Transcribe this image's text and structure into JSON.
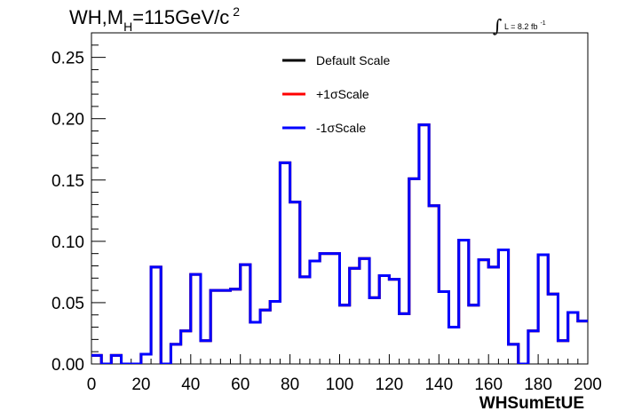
{
  "chart_data": {
    "type": "line",
    "title": {
      "prefix": "WH,M",
      "subscript": "H",
      "main": "=115GeV/c",
      "superscript": "2"
    },
    "luminosity": {
      "integral_symbol": "∫",
      "label": "L = 8.2 fb",
      "superscript": "-1"
    },
    "xlabel": "WHSumEtUE",
    "ylabel": "",
    "xlim": [
      0,
      200
    ],
    "ylim": [
      0,
      0.27
    ],
    "x_ticks": [
      "0",
      "20",
      "40",
      "60",
      "80",
      "100",
      "120",
      "140",
      "160",
      "180",
      "200"
    ],
    "y_ticks": [
      "0.00",
      "0.05",
      "0.10",
      "0.15",
      "0.20",
      "0.25"
    ],
    "bin_edges": [
      0,
      4,
      8,
      12,
      16,
      20,
      24,
      28,
      32,
      36,
      40,
      44,
      48,
      52,
      56,
      60,
      64,
      68,
      72,
      76,
      80,
      84,
      88,
      92,
      96,
      100,
      104,
      108,
      112,
      116,
      120,
      124,
      128,
      132,
      136,
      140,
      144,
      148,
      152,
      156,
      160,
      164,
      168,
      172,
      176,
      180,
      184,
      188,
      192,
      196,
      200
    ],
    "legend_position": "top-center",
    "series": [
      {
        "name": "Default Scale",
        "color": "#000000",
        "values": [
          0.007,
          0.0,
          0.007,
          0.0,
          0.0,
          0.008,
          0.079,
          0.0,
          0.016,
          0.027,
          0.073,
          0.019,
          0.06,
          0.06,
          0.061,
          0.081,
          0.034,
          0.044,
          0.051,
          0.164,
          0.132,
          0.071,
          0.084,
          0.09,
          0.09,
          0.048,
          0.078,
          0.086,
          0.054,
          0.072,
          0.069,
          0.041,
          0.151,
          0.195,
          0.129,
          0.059,
          0.03,
          0.101,
          0.048,
          0.085,
          0.079,
          0.093,
          0.016,
          0.0,
          0.027,
          0.089,
          0.057,
          0.019,
          0.042,
          0.035
        ]
      },
      {
        "name": "+1σScale",
        "color": "#ff0000",
        "values": [
          0.007,
          0.0,
          0.007,
          0.0,
          0.0,
          0.008,
          0.079,
          0.0,
          0.016,
          0.027,
          0.073,
          0.019,
          0.06,
          0.06,
          0.061,
          0.081,
          0.034,
          0.044,
          0.051,
          0.164,
          0.132,
          0.071,
          0.084,
          0.09,
          0.09,
          0.048,
          0.078,
          0.086,
          0.054,
          0.072,
          0.069,
          0.041,
          0.151,
          0.195,
          0.129,
          0.059,
          0.03,
          0.101,
          0.048,
          0.085,
          0.079,
          0.093,
          0.016,
          0.0,
          0.027,
          0.089,
          0.057,
          0.019,
          0.042,
          0.035
        ]
      },
      {
        "name": "-1σScale",
        "color": "#0000ff",
        "values": [
          0.007,
          0.0,
          0.007,
          0.0,
          0.0,
          0.008,
          0.079,
          0.0,
          0.016,
          0.027,
          0.073,
          0.019,
          0.06,
          0.06,
          0.061,
          0.081,
          0.034,
          0.044,
          0.051,
          0.164,
          0.132,
          0.071,
          0.084,
          0.09,
          0.09,
          0.048,
          0.078,
          0.086,
          0.054,
          0.072,
          0.069,
          0.041,
          0.151,
          0.195,
          0.129,
          0.059,
          0.03,
          0.101,
          0.048,
          0.085,
          0.079,
          0.093,
          0.016,
          0.0,
          0.027,
          0.089,
          0.057,
          0.019,
          0.042,
          0.035
        ]
      }
    ]
  }
}
